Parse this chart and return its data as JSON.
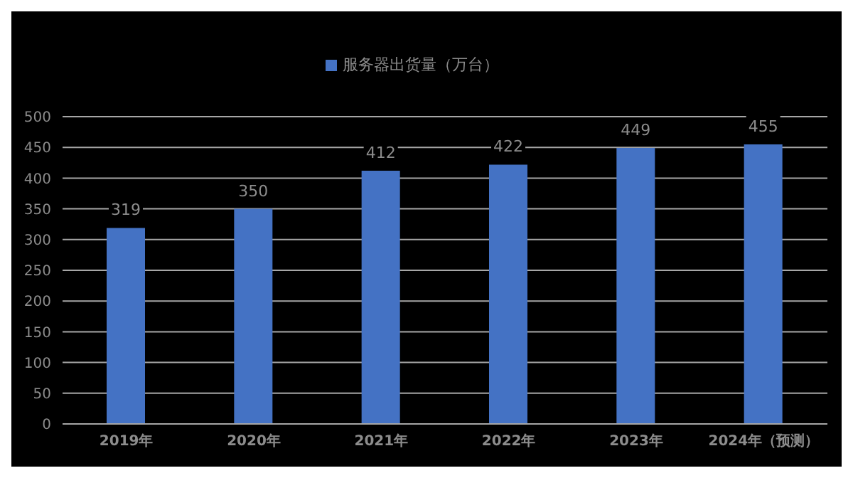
{
  "chart_data": {
    "type": "bar",
    "categories": [
      "2019年",
      "2020年",
      "2021年",
      "2022年",
      "2023年",
      "2024年（预测）"
    ],
    "series": [
      {
        "name": "服务器出货量（万台）",
        "color": "#4472c4",
        "values": [
          319,
          350,
          412,
          422,
          449,
          455
        ]
      }
    ],
    "ylim": [
      0,
      500
    ],
    "yticks": [
      0,
      50,
      100,
      150,
      200,
      250,
      300,
      350,
      400,
      450,
      500
    ],
    "grid": "y",
    "legend": "top",
    "data_labels": true
  }
}
